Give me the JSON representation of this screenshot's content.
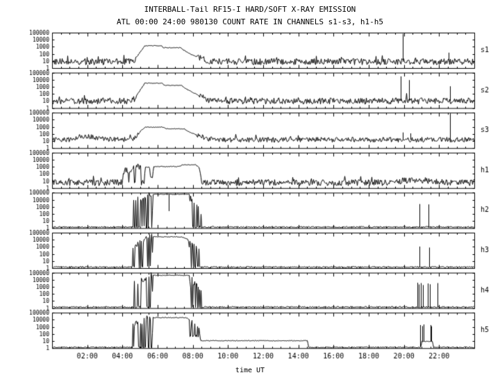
{
  "chart_data": {
    "type": "line",
    "title": "INTERBALL-Tail RF15-I HARD/SOFT X-RAY EMISSION",
    "subtitle": "ATL 00:00 24:00 980130  COUNT RATE IN CHANNELS s1-s3, h1-h5",
    "xlabel": "time UT",
    "colors": {
      "foreground": "#000000",
      "background": "#ffffff"
    },
    "x_range_hours": [
      0,
      24
    ],
    "x_minor_step_hours": 0.5,
    "x_ticks": [
      {
        "t": 2,
        "label": "02:00"
      },
      {
        "t": 4,
        "label": "04:00"
      },
      {
        "t": 6,
        "label": "06:00"
      },
      {
        "t": 8,
        "label": "08:00"
      },
      {
        "t": 10,
        "label": "10:00"
      },
      {
        "t": 12,
        "label": "12:00"
      },
      {
        "t": 14,
        "label": "14:00"
      },
      {
        "t": 16,
        "label": "16:00"
      },
      {
        "t": 18,
        "label": "18:00"
      },
      {
        "t": 20,
        "label": "20:00"
      },
      {
        "t": 22,
        "label": "22:00"
      }
    ],
    "y_log_range": [
      1,
      100000
    ],
    "y_ticks": [
      {
        "v": 100000,
        "label": "100000"
      },
      {
        "v": 10000,
        "label": "10000"
      },
      {
        "v": 1000,
        "label": "1000"
      },
      {
        "v": 100,
        "label": "100"
      },
      {
        "v": 10,
        "label": "10"
      },
      {
        "v": 1,
        "label": "1"
      }
    ],
    "panels": [
      {
        "label": "s1",
        "base": 8,
        "noise_dex": 0.45,
        "keypoints": [
          [
            0,
            8
          ],
          [
            4.55,
            8
          ],
          [
            4.75,
            25
          ],
          [
            5.0,
            200
          ],
          [
            5.25,
            1400
          ],
          [
            6.2,
            1400
          ],
          [
            6.3,
            750
          ],
          [
            7.3,
            750
          ],
          [
            7.45,
            350
          ],
          [
            7.9,
            80
          ],
          [
            8.5,
            18
          ],
          [
            9.0,
            8
          ],
          [
            24,
            8
          ]
        ],
        "bursts": [],
        "vlines": [
          {
            "t": 19.93,
            "v": 70000
          },
          {
            "t": 22.55,
            "v": 150
          }
        ]
      },
      {
        "label": "s2",
        "base": 10,
        "noise_dex": 0.45,
        "keypoints": [
          [
            0,
            10
          ],
          [
            4.55,
            10
          ],
          [
            4.75,
            40
          ],
          [
            5.0,
            400
          ],
          [
            5.25,
            3200
          ],
          [
            6.25,
            3200
          ],
          [
            6.35,
            1600
          ],
          [
            7.35,
            1600
          ],
          [
            7.5,
            700
          ],
          [
            8.0,
            150
          ],
          [
            8.6,
            25
          ],
          [
            9.1,
            10
          ],
          [
            24,
            10
          ]
        ],
        "bursts": [],
        "vlines": [
          {
            "t": 19.82,
            "v": 30000
          },
          {
            "t": 20.27,
            "v": 9000
          },
          {
            "t": 22.62,
            "v": 1200
          }
        ]
      },
      {
        "label": "s3",
        "base": 15,
        "noise_dex": 0.35,
        "keypoints": [
          [
            0,
            15
          ],
          [
            1.1,
            16
          ],
          [
            1.6,
            55
          ],
          [
            2.2,
            40
          ],
          [
            2.9,
            18
          ],
          [
            4.55,
            15
          ],
          [
            4.8,
            45
          ],
          [
            5.05,
            350
          ],
          [
            5.3,
            900
          ],
          [
            6.3,
            900
          ],
          [
            6.45,
            520
          ],
          [
            7.5,
            520
          ],
          [
            7.65,
            260
          ],
          [
            8.2,
            70
          ],
          [
            8.8,
            22
          ],
          [
            9.3,
            15
          ],
          [
            24,
            15
          ]
        ],
        "bursts": [],
        "vlines": [
          {
            "t": 19.95,
            "v": 160
          },
          {
            "t": 20.35,
            "v": 120
          },
          {
            "t": 22.6,
            "v": 80000
          }
        ]
      },
      {
        "label": "h1",
        "base": 6,
        "noise_dex": 0.45,
        "keypoints": [
          [
            0,
            6
          ],
          [
            5.2,
            6
          ],
          [
            5.28,
            900
          ],
          [
            5.52,
            900
          ],
          [
            5.58,
            25
          ],
          [
            5.68,
            25
          ],
          [
            5.75,
            1100
          ],
          [
            7.2,
            1100
          ],
          [
            7.4,
            1900
          ],
          [
            8.15,
            1900
          ],
          [
            8.35,
            700
          ],
          [
            8.5,
            6
          ],
          [
            19.3,
            6
          ],
          [
            20.0,
            11
          ],
          [
            21.5,
            11
          ],
          [
            22.3,
            6
          ],
          [
            24,
            6
          ]
        ],
        "bursts": [
          {
            "t0": 4.0,
            "t1": 5.05,
            "lo": 6,
            "hi0": 250,
            "hi1": 1300,
            "p": 0.72
          }
        ],
        "vlines": []
      },
      {
        "label": "h2",
        "base": 1.4,
        "noise_dex": 0.1,
        "keypoints": [
          [
            0,
            1.4
          ],
          [
            5.65,
            1.4
          ],
          [
            5.72,
            60000
          ],
          [
            7.78,
            60000
          ],
          [
            7.84,
            1500
          ],
          [
            8.02,
            1.4
          ],
          [
            24,
            1.4
          ]
        ],
        "bursts": [
          {
            "t0": 4.55,
            "t1": 5.65,
            "lo": 1.4,
            "hi0": 4000,
            "hi1": 90000,
            "p": 0.55
          },
          {
            "t0": 7.85,
            "t1": 8.45,
            "lo": 1.4,
            "hi0": 20000,
            "hi1": 200,
            "p": 0.5
          }
        ],
        "vlines": [
          {
            "t": 6.62,
            "v": 250
          },
          {
            "t": 20.88,
            "v": 2500
          },
          {
            "t": 21.38,
            "v": 2200
          }
        ]
      },
      {
        "label": "h3",
        "base": 1.4,
        "noise_dex": 0.1,
        "keypoints": [
          [
            0,
            1.4
          ],
          [
            5.65,
            1.4
          ],
          [
            5.72,
            26000
          ],
          [
            7.3,
            26000
          ],
          [
            7.72,
            11000
          ],
          [
            7.78,
            800
          ],
          [
            8.0,
            1.4
          ],
          [
            24,
            1.4
          ]
        ],
        "bursts": [
          {
            "t0": 4.55,
            "t1": 5.65,
            "lo": 1.4,
            "hi0": 1500,
            "hi1": 30000,
            "p": 0.55
          },
          {
            "t0": 7.8,
            "t1": 8.4,
            "lo": 1.4,
            "hi0": 6000,
            "hi1": 150,
            "p": 0.5
          }
        ],
        "vlines": [
          {
            "t": 20.9,
            "v": 1100
          },
          {
            "t": 21.42,
            "v": 800
          }
        ]
      },
      {
        "label": "h4",
        "base": 1.4,
        "noise_dex": 0.1,
        "keypoints": [
          [
            0,
            1.4
          ],
          [
            5.65,
            1.4
          ],
          [
            5.72,
            42000
          ],
          [
            7.78,
            42000
          ],
          [
            7.84,
            1200
          ],
          [
            8.05,
            1.4
          ],
          [
            24,
            1.4
          ]
        ],
        "bursts": [
          {
            "t0": 4.55,
            "t1": 5.65,
            "lo": 1.4,
            "hi0": 2500,
            "hi1": 55000,
            "p": 0.55
          },
          {
            "t0": 7.86,
            "t1": 8.48,
            "lo": 1.4,
            "hi0": 15000,
            "hi1": 200,
            "p": 0.5
          }
        ],
        "vlines": [
          {
            "t": 20.75,
            "v": 3800
          },
          {
            "t": 20.85,
            "v": 2200
          },
          {
            "t": 20.97,
            "v": 3400
          },
          {
            "t": 21.07,
            "v": 1800
          },
          {
            "t": 21.35,
            "v": 3000
          },
          {
            "t": 21.47,
            "v": 2300
          },
          {
            "t": 21.9,
            "v": 3400
          }
        ]
      },
      {
        "label": "h5",
        "base": 1.3,
        "noise_dex": 0.08,
        "keypoints": [
          [
            0,
            1.3
          ],
          [
            5.65,
            1.3
          ],
          [
            5.72,
            20000
          ],
          [
            7.6,
            20000
          ],
          [
            8.05,
            4000
          ],
          [
            8.3,
            2500
          ],
          [
            8.42,
            11
          ],
          [
            14.5,
            11
          ],
          [
            14.56,
            1.3
          ],
          [
            20.95,
            1.3
          ],
          [
            21.0,
            9
          ],
          [
            21.6,
            9
          ],
          [
            21.66,
            1.3
          ],
          [
            24,
            1.3
          ]
        ],
        "bursts": [
          {
            "t0": 4.55,
            "t1": 5.65,
            "lo": 1.3,
            "hi0": 1500,
            "hi1": 28000,
            "p": 0.55
          },
          {
            "t0": 7.8,
            "t1": 8.3,
            "lo": 50,
            "hi0": 8000,
            "hi1": 300,
            "p": 0.5
          }
        ],
        "vlines": [
          {
            "t": 20.92,
            "v": 1800
          },
          {
            "t": 21.02,
            "v": 1300
          },
          {
            "t": 21.12,
            "v": 2200
          },
          {
            "t": 21.5,
            "v": 1800
          },
          {
            "t": 21.56,
            "v": 1200
          }
        ]
      }
    ]
  }
}
